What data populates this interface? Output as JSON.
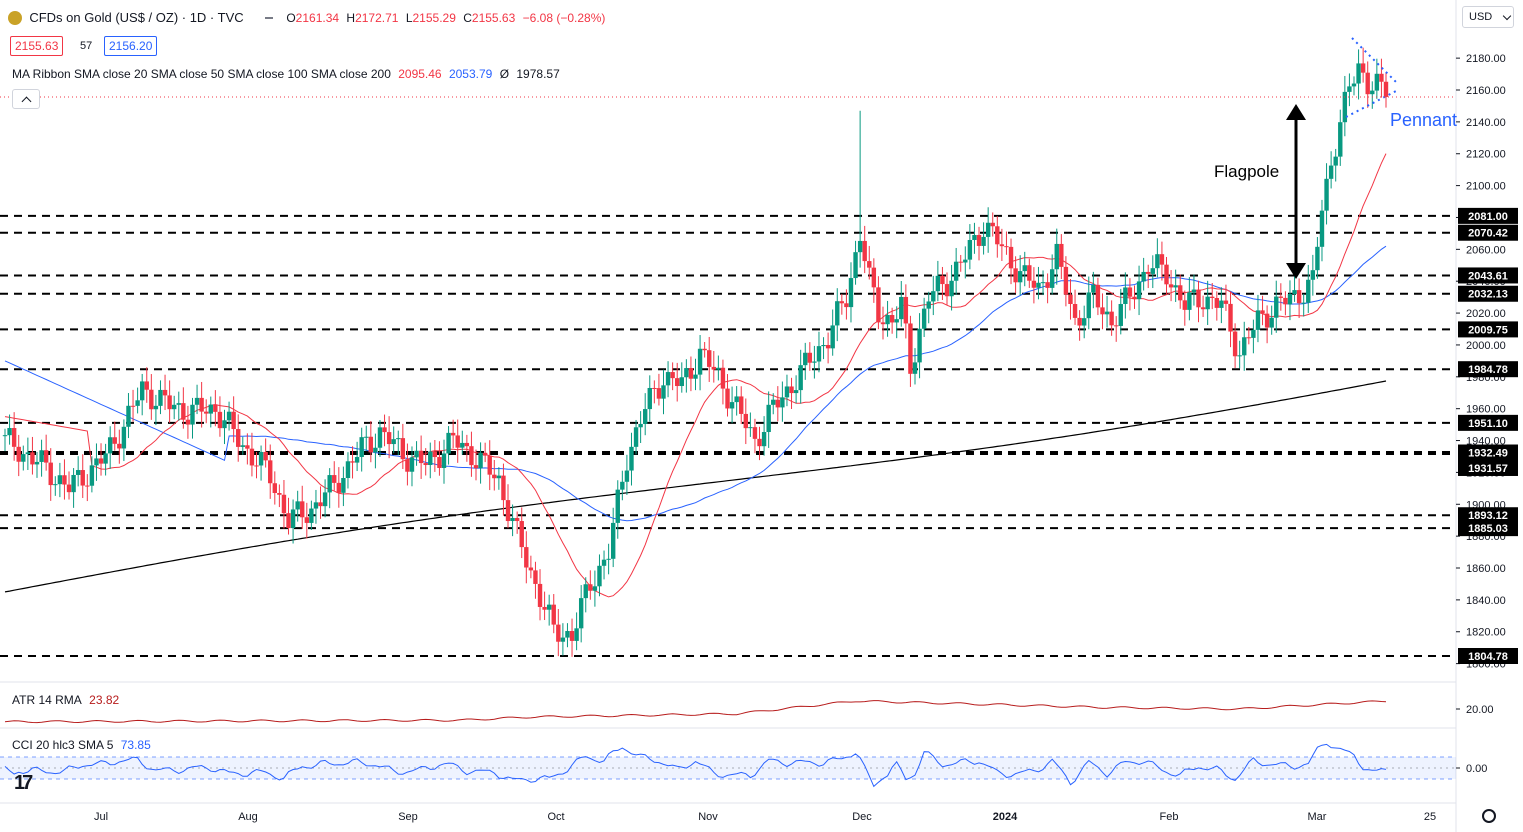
{
  "header": {
    "title": "CFDs on Gold (US$ / OZ) · 1D · TVC",
    "ohlc": {
      "o_label": "O",
      "o": "2161.34",
      "h_label": "H",
      "h": "2172.71",
      "l_label": "L",
      "l": "2155.29",
      "c_label": "C",
      "c": "2155.63",
      "change": "−6.08 (−0.28%)"
    },
    "bid": "2155.63",
    "spread": "57",
    "ask": "2156.20",
    "currency": "USD"
  },
  "indicators": {
    "ma_ribbon_label": "MA Ribbon SMA close 20 SMA close 50 SMA close 100 SMA close 200",
    "ma_values": [
      "2095.46",
      "2053.79",
      "Ø",
      "1978.57"
    ],
    "atr_label": "ATR 14 RMA",
    "atr_value": "23.82",
    "cci_label": "CCI 20 hlc3 SMA 5",
    "cci_value": "73.85"
  },
  "colors": {
    "up": "#089981",
    "down": "#f23645",
    "sma20": "#f23645",
    "sma50": "#2962ff",
    "sma200": "#000000",
    "atr": "#b71c1c",
    "cci": "#2962ff",
    "pennant": "#2962ff",
    "tag": "#000000"
  },
  "chart_data": {
    "type": "candlestick",
    "ylim": [
      1780,
      2200
    ],
    "y_ticks": [
      "1800.00",
      "1820.00",
      "1840.00",
      "1860.00",
      "1880.00",
      "1900.00",
      "1920.00",
      "1940.00",
      "1960.00",
      "1980.00",
      "2000.00",
      "2020.00",
      "2040.00",
      "2060.00",
      "2080.00",
      "2100.00",
      "2120.00",
      "2140.00",
      "2160.00",
      "2180.00"
    ],
    "x_ticks": [
      "Jul",
      "Aug",
      "Sep",
      "Oct",
      "Nov",
      "Dec",
      "2024",
      "Feb",
      "Mar",
      "25"
    ],
    "levels": [
      "2081.00",
      "2070.42",
      "2043.61",
      "2032.13",
      "2009.75",
      "1984.78",
      "1951.10",
      "1932.49",
      "1931.57",
      "1893.12",
      "1885.03",
      "1804.78"
    ],
    "annotations": {
      "flagpole": "Flagpole",
      "pennant": "Pennant"
    },
    "indicator_ticks": {
      "atr": "20.00",
      "cci": "0.00"
    },
    "waypoints": [
      [
        0,
        1940
      ],
      [
        8,
        1925
      ],
      [
        14,
        1910
      ],
      [
        22,
        1930
      ],
      [
        26,
        1950
      ],
      [
        30,
        1972
      ],
      [
        36,
        1962
      ],
      [
        40,
        1958
      ],
      [
        46,
        1960
      ],
      [
        52,
        1937
      ],
      [
        58,
        1918
      ],
      [
        62,
        1890
      ],
      [
        67,
        1897
      ],
      [
        72,
        1912
      ],
      [
        78,
        1935
      ],
      [
        82,
        1945
      ],
      [
        88,
        1930
      ],
      [
        92,
        1925
      ],
      [
        98,
        1940
      ],
      [
        102,
        1932
      ],
      [
        108,
        1915
      ],
      [
        112,
        1880
      ],
      [
        116,
        1850
      ],
      [
        120,
        1820
      ],
      [
        124,
        1818
      ],
      [
        128,
        1850
      ],
      [
        132,
        1870
      ],
      [
        136,
        1930
      ],
      [
        140,
        1960
      ],
      [
        144,
        1980
      ],
      [
        148,
        1975
      ],
      [
        152,
        1995
      ],
      [
        156,
        1980
      ],
      [
        160,
        1960
      ],
      [
        164,
        1940
      ],
      [
        168,
        1960
      ],
      [
        172,
        1975
      ],
      [
        176,
        1990
      ],
      [
        180,
        2005
      ],
      [
        184,
        2030
      ],
      [
        187,
        2070
      ],
      [
        189,
        2040
      ],
      [
        191,
        2020
      ],
      [
        194,
        2015
      ],
      [
        196,
        2025
      ],
      [
        198,
        1985
      ],
      [
        200,
        2010
      ],
      [
        202,
        2030
      ],
      [
        206,
        2040
      ],
      [
        210,
        2055
      ],
      [
        214,
        2075
      ],
      [
        216,
        2070
      ],
      [
        218,
        2060
      ],
      [
        222,
        2045
      ],
      [
        226,
        2035
      ],
      [
        230,
        2055
      ],
      [
        234,
        2015
      ],
      [
        238,
        2030
      ],
      [
        242,
        2015
      ],
      [
        246,
        2030
      ],
      [
        250,
        2050
      ],
      [
        254,
        2045
      ],
      [
        258,
        2025
      ],
      [
        262,
        2030
      ],
      [
        266,
        2025
      ],
      [
        268,
        2010
      ],
      [
        270,
        1995
      ],
      [
        274,
        2015
      ],
      [
        278,
        2025
      ],
      [
        282,
        2030
      ],
      [
        286,
        2040
      ],
      [
        288,
        2085
      ],
      [
        290,
        2115
      ],
      [
        292,
        2140
      ],
      [
        294,
        2160
      ],
      [
        296,
        2175
      ],
      [
        298,
        2165
      ],
      [
        300,
        2162
      ],
      [
        302,
        2156
      ]
    ],
    "volatility": [
      [
        0,
        12
      ],
      [
        100,
        13
      ],
      [
        115,
        15
      ],
      [
        160,
        17
      ],
      [
        186,
        25
      ],
      [
        200,
        24
      ],
      [
        240,
        21
      ],
      [
        270,
        20
      ],
      [
        302,
        25
      ]
    ]
  }
}
